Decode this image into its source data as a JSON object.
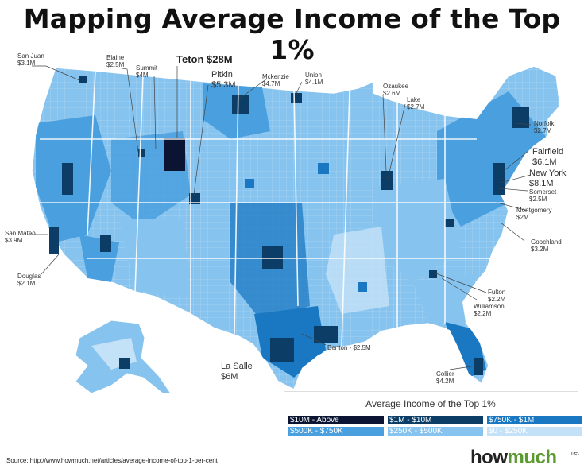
{
  "title": "Mapping Average Income of the Top 1%",
  "callouts": [
    {
      "id": "san-juan",
      "name": "San Juan",
      "value": "$3.1M"
    },
    {
      "id": "blaine",
      "name": "Blaine",
      "value": "$2.5M"
    },
    {
      "id": "summit",
      "name": "Summit",
      "value": "$4M"
    },
    {
      "id": "teton",
      "name": "Teton $28M",
      "value": ""
    },
    {
      "id": "pitkin",
      "name": "Pitkin",
      "value": "$5.3M"
    },
    {
      "id": "mckenzie",
      "name": "Mckenzie",
      "value": "$4.7M"
    },
    {
      "id": "union",
      "name": "Union",
      "value": "$4.1M"
    },
    {
      "id": "ozaukee",
      "name": "Ozaukee",
      "value": "$2.6M"
    },
    {
      "id": "lake",
      "name": "Lake",
      "value": "$2.7M"
    },
    {
      "id": "norfolk",
      "name": "Norfolk",
      "value": "$2.7M"
    },
    {
      "id": "fairfield",
      "name": "Fairfield",
      "value": "$6.1M"
    },
    {
      "id": "new-york",
      "name": "New York",
      "value": "$8.1M"
    },
    {
      "id": "somerset",
      "name": "Somerset",
      "value": "$2.5M"
    },
    {
      "id": "montgomery",
      "name": "Montgomery",
      "value": "$2M"
    },
    {
      "id": "goochland",
      "name": "Goochland",
      "value": "$3.2M"
    },
    {
      "id": "fulton",
      "name": "Fulton",
      "value": "$2.2M"
    },
    {
      "id": "williamson",
      "name": "Williamson",
      "value": "$2.2M"
    },
    {
      "id": "collier",
      "name": "Collier",
      "value": "$4.2M"
    },
    {
      "id": "benton",
      "name": "Benton - $2.5M",
      "value": ""
    },
    {
      "id": "la-salle",
      "name": "La Salle",
      "value": "$6M"
    },
    {
      "id": "san-mateo",
      "name": "San Mateo",
      "value": "$3.9M"
    },
    {
      "id": "douglas",
      "name": "Douglas",
      "value": "$2.1M"
    }
  ],
  "legend": {
    "title": "Average Income of the Top 1%",
    "items": [
      {
        "label": "$10M - Above",
        "color": "#0b1533"
      },
      {
        "label": "$1M - $10M",
        "color": "#0b3d66"
      },
      {
        "label": "$750K - $1M",
        "color": "#1a78c2"
      },
      {
        "label": "$500K - $750K",
        "color": "#4aa0de"
      },
      {
        "label": "$250K - $500K",
        "color": "#86c3ee"
      },
      {
        "label": "$0 - $250K",
        "color": "#c4e2f7"
      }
    ]
  },
  "source": "Source: http://www.howmuch.net/articles/average-income-of-top-1-per-cent",
  "brand": {
    "part1": "how",
    "part2": "much",
    "suffix": "net"
  }
}
